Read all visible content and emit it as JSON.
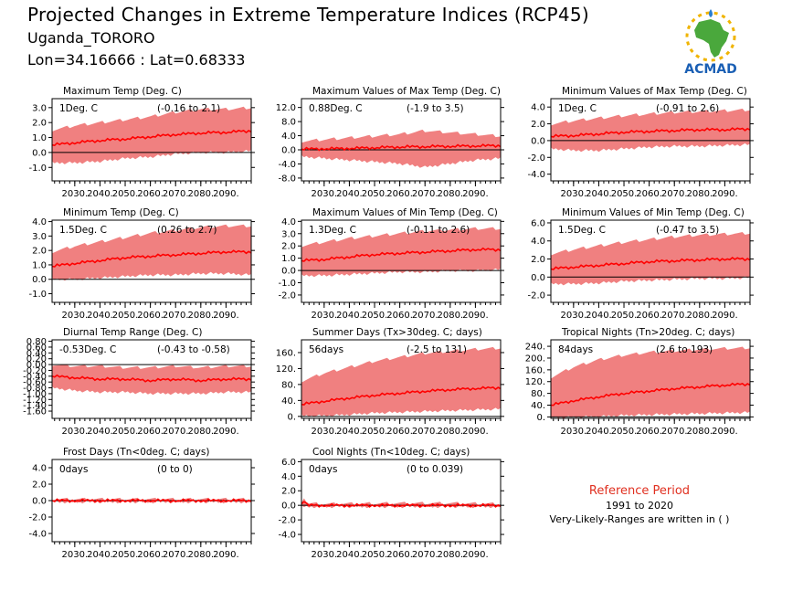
{
  "header": {
    "title": "Projected Changes in Extreme Temperature Indices (RCP45)",
    "location": "Uganda_TORORO",
    "coordinates": "Lon=34.16666 : Lat=0.68333"
  },
  "logo": {
    "text": "ACMAD",
    "colors": {
      "africa": "#4aa83c",
      "text": "#1a5fb4",
      "sun": "#f0b400",
      "drop": "#2a7fd0"
    }
  },
  "reference": {
    "title": "Reference Period",
    "years": "1991 to 2020",
    "note": "Very-Likely-Ranges are written in ( )"
  },
  "colors": {
    "band": "#f08080",
    "line": "#ff0000",
    "zero_line": "#000000"
  },
  "chart_data": [
    {
      "type": "area",
      "title": "Maximum Temp (Deg. C)",
      "value_label": "1Deg. C",
      "range_label": "(-0.16 to 2.1)",
      "xlim": [
        2021,
        2100
      ],
      "ylim": [
        -1.9,
        3.6
      ],
      "yticks": [
        3.0,
        2.0,
        1.0,
        0.0,
        -1.0
      ],
      "ytick_labels": [
        "3.0",
        "2.0",
        "1.0",
        "0.0",
        "-1.0"
      ],
      "xticks": [
        2030,
        2040,
        2050,
        2060,
        2070,
        2080,
        2090
      ],
      "xtick_labels": [
        "2030.",
        "2040.",
        "2050.",
        "2060.",
        "2070.",
        "2080.",
        "2090."
      ],
      "x": [
        2021,
        2030,
        2040,
        2050,
        2060,
        2070,
        2080,
        2090,
        2100
      ],
      "median": [
        0.5,
        0.65,
        0.8,
        0.9,
        1.05,
        1.2,
        1.3,
        1.35,
        1.45
      ],
      "lower": [
        -0.6,
        -0.6,
        -0.5,
        -0.3,
        -0.2,
        0.0,
        0.1,
        0.1,
        0.2
      ],
      "upper": [
        1.4,
        1.7,
        1.9,
        2.1,
        2.3,
        2.6,
        2.8,
        2.8,
        2.9
      ]
    },
    {
      "type": "area",
      "title": "Maximum Values of Max Temp (Deg. C)",
      "value_label": "0.88Deg. C",
      "range_label": "(-1.9 to 3.5)",
      "xlim": [
        2021,
        2100
      ],
      "ylim": [
        -8.8,
        14.5
      ],
      "yticks": [
        12.0,
        8.0,
        4.0,
        0.0,
        -4.0,
        -8.0
      ],
      "ytick_labels": [
        "12.0",
        "8.0",
        "4.0",
        "0.0",
        "-4.0",
        "-8.0"
      ],
      "xticks": [
        2030,
        2040,
        2050,
        2060,
        2070,
        2080,
        2090
      ],
      "xtick_labels": [
        "2030.",
        "2040.",
        "2050.",
        "2060.",
        "2070.",
        "2080.",
        "2090."
      ],
      "x": [
        2021,
        2030,
        2040,
        2050,
        2060,
        2070,
        2080,
        2090,
        2100
      ],
      "median": [
        0.2,
        0.3,
        0.4,
        0.6,
        0.8,
        0.9,
        1.0,
        1.1,
        1.2
      ],
      "lower": [
        -1.5,
        -2.0,
        -2.5,
        -3.0,
        -3.5,
        -4.5,
        -3.5,
        -2.5,
        -2.0
      ],
      "upper": [
        2.0,
        2.5,
        3.0,
        3.5,
        4.0,
        5.0,
        4.5,
        4.0,
        3.5
      ]
    },
    {
      "type": "area",
      "title": "Minimum Values of Max Temp (Deg. C)",
      "value_label": "1Deg. C",
      "range_label": "(-0.91 to 2.6)",
      "xlim": [
        2021,
        2100
      ],
      "ylim": [
        -4.8,
        5.0
      ],
      "yticks": [
        4.0,
        2.0,
        0.0,
        -2.0,
        -4.0
      ],
      "ytick_labels": [
        "4.0",
        "2.0",
        "0.0",
        "-2.0",
        "-4.0"
      ],
      "xticks": [
        2030,
        2040,
        2050,
        2060,
        2070,
        2080,
        2090
      ],
      "xtick_labels": [
        "2030.",
        "2040.",
        "2050.",
        "2060.",
        "2070.",
        "2080.",
        "2090."
      ],
      "x": [
        2021,
        2030,
        2040,
        2050,
        2060,
        2070,
        2080,
        2090,
        2100
      ],
      "median": [
        0.5,
        0.6,
        0.8,
        1.0,
        1.1,
        1.2,
        1.3,
        1.3,
        1.4
      ],
      "lower": [
        -0.8,
        -1.0,
        -1.0,
        -0.8,
        -0.6,
        -0.5,
        -0.5,
        -0.4,
        -0.3
      ],
      "upper": [
        1.8,
        2.2,
        2.5,
        2.8,
        3.0,
        3.2,
        3.3,
        3.4,
        3.5
      ]
    },
    {
      "type": "area",
      "title": "Minimum Temp (Deg. C)",
      "value_label": "1.5Deg. C",
      "range_label": "(0.26 to 2.7)",
      "xlim": [
        2021,
        2100
      ],
      "ylim": [
        -1.6,
        4.1
      ],
      "yticks": [
        4.0,
        3.0,
        2.0,
        1.0,
        0.0,
        -1.0
      ],
      "ytick_labels": [
        "4.0",
        "3.0",
        "2.0",
        "1.0",
        "0.0",
        "-1.0"
      ],
      "xticks": [
        2030,
        2040,
        2050,
        2060,
        2070,
        2080,
        2090
      ],
      "xtick_labels": [
        "2030.",
        "2040.",
        "2050.",
        "2060.",
        "2070.",
        "2080.",
        "2090."
      ],
      "x": [
        2021,
        2030,
        2040,
        2050,
        2060,
        2070,
        2080,
        2090,
        2100
      ],
      "median": [
        0.9,
        1.1,
        1.3,
        1.5,
        1.6,
        1.7,
        1.8,
        1.9,
        1.9
      ],
      "lower": [
        0.1,
        0.1,
        0.2,
        0.3,
        0.4,
        0.4,
        0.5,
        0.5,
        0.4
      ],
      "upper": [
        1.8,
        2.2,
        2.5,
        2.8,
        3.1,
        3.3,
        3.5,
        3.6,
        3.6
      ]
    },
    {
      "type": "area",
      "title": "Maximum Values of Min Temp (Deg. C)",
      "value_label": "1.3Deg. C",
      "range_label": "(-0.11 to 2.6)",
      "xlim": [
        2021,
        2100
      ],
      "ylim": [
        -2.6,
        4.1
      ],
      "yticks": [
        4.0,
        3.0,
        2.0,
        1.0,
        0.0,
        -1.0,
        -2.0
      ],
      "ytick_labels": [
        "4.0",
        "3.0",
        "2.0",
        "1.0",
        "0.0",
        "-1.0",
        "-2.0"
      ],
      "xticks": [
        2030,
        2040,
        2050,
        2060,
        2070,
        2080,
        2090
      ],
      "xtick_labels": [
        "2030.",
        "2040.",
        "2050.",
        "2060.",
        "2070.",
        "2080.",
        "2090."
      ],
      "x": [
        2021,
        2030,
        2040,
        2050,
        2060,
        2070,
        2080,
        2090,
        2100
      ],
      "median": [
        0.8,
        0.9,
        1.1,
        1.3,
        1.4,
        1.5,
        1.6,
        1.7,
        1.7
      ],
      "lower": [
        -0.3,
        -0.3,
        -0.2,
        -0.1,
        0.0,
        0.0,
        0.1,
        0.1,
        0.2
      ],
      "upper": [
        1.9,
        2.2,
        2.5,
        2.7,
        2.9,
        3.1,
        3.2,
        3.3,
        3.3
      ]
    },
    {
      "type": "area",
      "title": "Minimum Values of Min Temp (Deg. C)",
      "value_label": "1.5Deg. C",
      "range_label": "(-0.47 to 3.5)",
      "xlim": [
        2021,
        2100
      ],
      "ylim": [
        -2.8,
        6.3
      ],
      "yticks": [
        6.0,
        4.0,
        2.0,
        0.0,
        -2.0
      ],
      "ytick_labels": [
        "6.0",
        "4.0",
        "2.0",
        "0.0",
        "-2.0"
      ],
      "xticks": [
        2030,
        2040,
        2050,
        2060,
        2070,
        2080,
        2090
      ],
      "xtick_labels": [
        "2030.",
        "2040.",
        "2050.",
        "2060.",
        "2070.",
        "2080.",
        "2090."
      ],
      "x": [
        2021,
        2030,
        2040,
        2050,
        2060,
        2070,
        2080,
        2090,
        2100
      ],
      "median": [
        0.9,
        1.1,
        1.3,
        1.5,
        1.7,
        1.8,
        1.9,
        2.0,
        2.0
      ],
      "lower": [
        -0.6,
        -0.6,
        -0.5,
        -0.3,
        -0.2,
        -0.1,
        0.0,
        0.0,
        0.1
      ],
      "upper": [
        2.4,
        2.9,
        3.3,
        3.7,
        4.0,
        4.3,
        4.5,
        4.6,
        4.7
      ]
    },
    {
      "type": "area",
      "title": "Diurnal Temp Range (Deg. C)",
      "value_label": "-0.53Deg. C",
      "range_label": "(-0.43 to -0.58)",
      "xlim": [
        2021,
        2100
      ],
      "ylim": [
        -1.85,
        0.85
      ],
      "yticks": [
        0.8,
        0.6,
        0.4,
        0.2,
        0.0,
        -0.2,
        -0.4,
        -0.6,
        -0.8,
        -1.0,
        -1.2,
        -1.4,
        -1.6
      ],
      "ytick_labels": [
        "0.80",
        "0.60",
        "0.40",
        "0.20",
        "0.00",
        "-0.20",
        "-0.40",
        "-0.60",
        "-0.80",
        "-1.00",
        "-1.20",
        "-1.40",
        "-1.60"
      ],
      "xticks": [
        2030,
        2040,
        2050,
        2060,
        2070,
        2080,
        2090
      ],
      "xtick_labels": [
        "2030.",
        "2040.",
        "2050.",
        "2060.",
        "2070.",
        "2080.",
        "2090."
      ],
      "x": [
        2021,
        2030,
        2040,
        2050,
        2060,
        2070,
        2080,
        2090,
        2100
      ],
      "median": [
        -0.4,
        -0.45,
        -0.5,
        -0.5,
        -0.55,
        -0.5,
        -0.55,
        -0.5,
        -0.5
      ],
      "lower": [
        -0.75,
        -0.85,
        -0.9,
        -0.9,
        -0.95,
        -0.95,
        -0.95,
        -0.9,
        -0.9
      ],
      "upper": [
        -0.05,
        -0.1,
        -0.1,
        -0.15,
        -0.15,
        -0.1,
        -0.15,
        -0.1,
        -0.1
      ]
    },
    {
      "type": "area",
      "title": "Summer Days (Tx>30deg. C; days)",
      "value_label": "56days",
      "range_label": "(-2.5 to 131)",
      "xlim": [
        2021,
        2100
      ],
      "ylim": [
        -5,
        192
      ],
      "yticks": [
        160,
        120,
        80,
        40,
        0
      ],
      "ytick_labels": [
        "160.",
        "120.",
        "80.",
        "40.",
        "0."
      ],
      "xticks": [
        2030,
        2040,
        2050,
        2060,
        2070,
        2080,
        2090
      ],
      "xtick_labels": [
        "2030.",
        "2040.",
        "2050.",
        "2060.",
        "2070.",
        "2080.",
        "2090."
      ],
      "x": [
        2021,
        2030,
        2040,
        2050,
        2060,
        2070,
        2080,
        2090,
        2100
      ],
      "median": [
        30,
        38,
        46,
        53,
        58,
        63,
        67,
        70,
        72
      ],
      "lower": [
        5,
        5,
        8,
        12,
        14,
        16,
        18,
        20,
        22
      ],
      "upper": [
        85,
        105,
        120,
        135,
        145,
        155,
        160,
        165,
        168
      ]
    },
    {
      "type": "area",
      "title": "Tropical Nights (Tn>20deg. C; days)",
      "value_label": "84days",
      "range_label": "(2.6 to 193)",
      "xlim": [
        2021,
        2100
      ],
      "ylim": [
        -5,
        262
      ],
      "yticks": [
        240,
        200,
        160,
        120,
        80,
        40,
        0
      ],
      "ytick_labels": [
        "240.",
        "200.",
        "160.",
        "120.",
        "80.",
        "40.",
        "0."
      ],
      "xticks": [
        2030,
        2040,
        2050,
        2060,
        2070,
        2080,
        2090
      ],
      "xtick_labels": [
        "2030.",
        "2040.",
        "2050.",
        "2060.",
        "2070.",
        "2080.",
        "2090."
      ],
      "x": [
        2021,
        2030,
        2040,
        2050,
        2060,
        2070,
        2080,
        2090,
        2100
      ],
      "median": [
        40,
        55,
        68,
        80,
        88,
        96,
        102,
        108,
        112
      ],
      "lower": [
        3,
        4,
        6,
        10,
        12,
        14,
        16,
        18,
        20
      ],
      "upper": [
        130,
        165,
        190,
        205,
        215,
        220,
        225,
        228,
        230
      ]
    },
    {
      "type": "area",
      "title": "Frost Days (Tn<0deg. C; days)",
      "value_label": "0days",
      "range_label": "(0 to 0)",
      "xlim": [
        2021,
        2100
      ],
      "ylim": [
        -5.0,
        5.0
      ],
      "yticks": [
        4.0,
        2.0,
        0.0,
        -2.0,
        -4.0
      ],
      "ytick_labels": [
        "4.0",
        "2.0",
        "0.0",
        "-2.0",
        "-4.0"
      ],
      "xticks": [
        2030,
        2040,
        2050,
        2060,
        2070,
        2080,
        2090
      ],
      "xtick_labels": [
        "2030.",
        "2040.",
        "2050.",
        "2060.",
        "2070.",
        "2080.",
        "2090."
      ],
      "x": [
        2021,
        2100
      ],
      "median": [
        0,
        0
      ],
      "lower": [
        0,
        0
      ],
      "upper": [
        0,
        0
      ]
    },
    {
      "type": "area",
      "title": "Cool Nights (Tn<10deg. C; days)",
      "value_label": "0days",
      "range_label": "(0 to 0.039)",
      "xlim": [
        2021,
        2100
      ],
      "ylim": [
        -5.0,
        6.3
      ],
      "yticks": [
        6.0,
        4.0,
        2.0,
        0.0,
        -2.0,
        -4.0
      ],
      "ytick_labels": [
        "6.0",
        "4.0",
        "2.0",
        "0.0",
        "-2.0",
        "-4.0"
      ],
      "xticks": [
        2030,
        2040,
        2050,
        2060,
        2070,
        2080,
        2090
      ],
      "xtick_labels": [
        "2030.",
        "2040.",
        "2050.",
        "2060.",
        "2070.",
        "2080.",
        "2090."
      ],
      "x": [
        2021,
        2022,
        2023,
        2024,
        2030,
        2060,
        2080,
        2100
      ],
      "median": [
        0.2,
        0.6,
        0.1,
        0,
        0,
        0,
        0,
        0
      ],
      "lower": [
        0,
        0,
        0,
        0,
        0,
        0,
        0,
        0
      ],
      "upper": [
        0.4,
        0.9,
        0.3,
        0.05,
        0,
        0.1,
        0.1,
        0
      ]
    }
  ]
}
